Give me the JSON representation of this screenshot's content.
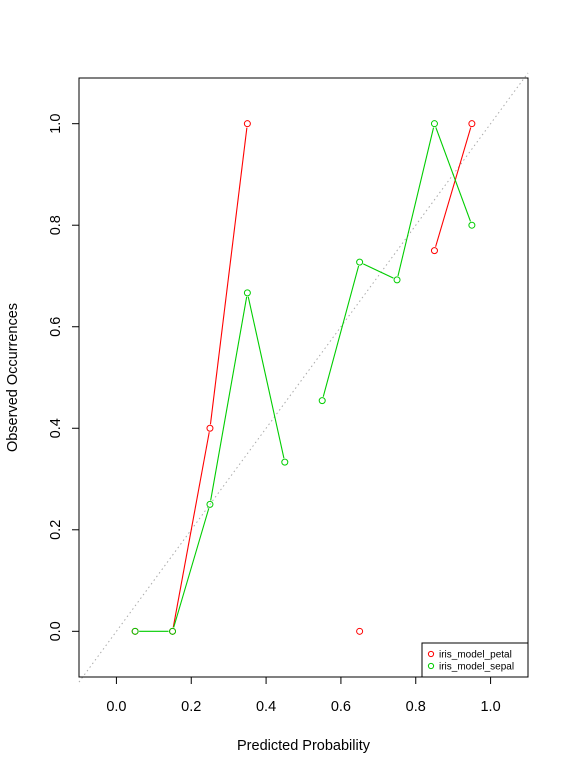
{
  "chart_data": {
    "type": "line",
    "xlabel": "Predicted Probability",
    "ylabel": "Observed Occurrences",
    "xlim": [
      -0.1,
      1.1
    ],
    "ylim": [
      -0.09,
      1.09
    ],
    "x_ticks": [
      "0.0",
      "0.2",
      "0.4",
      "0.6",
      "0.8",
      "1.0"
    ],
    "y_ticks": [
      "0.0",
      "0.2",
      "0.4",
      "0.6",
      "0.8",
      "1.0"
    ],
    "reference_line": {
      "style": "dotted",
      "color": "#aaaaaa",
      "from": [
        -0.1,
        -0.1
      ],
      "to": [
        1.1,
        1.1
      ]
    },
    "grid": false,
    "legend_position": "bottom-right",
    "series": [
      {
        "name": "iris_model_petal",
        "color": "#ff0000",
        "x": [
          0.05,
          0.15,
          0.25,
          0.35,
          0.65,
          0.85,
          0.95
        ],
        "y": [
          0.0,
          0.0,
          0.4,
          1.0,
          0.0,
          0.75,
          1.0
        ],
        "connected_segments": [
          [
            1,
            2
          ],
          [
            2,
            3
          ],
          [
            5,
            6
          ]
        ]
      },
      {
        "name": "iris_model_sepal",
        "color": "#00cd00",
        "x": [
          0.05,
          0.15,
          0.25,
          0.35,
          0.45,
          0.55,
          0.65,
          0.75,
          0.85,
          0.95
        ],
        "y": [
          0.0,
          0.0,
          0.25,
          0.6667,
          0.3333,
          0.4545,
          0.7273,
          0.6923,
          1.0,
          0.8
        ],
        "connected_segments": [
          [
            0,
            1
          ],
          [
            1,
            2
          ],
          [
            2,
            3
          ],
          [
            3,
            4
          ],
          [
            5,
            6
          ],
          [
            6,
            7
          ],
          [
            7,
            8
          ],
          [
            8,
            9
          ]
        ]
      }
    ]
  }
}
